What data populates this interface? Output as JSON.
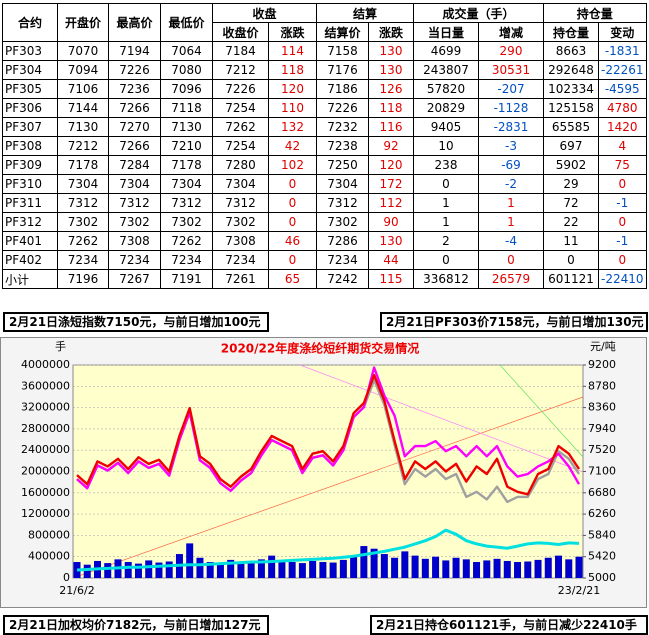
{
  "table": {
    "header_top": [
      "合约",
      "开盘价",
      "最高价",
      "最低价",
      "收盘",
      "结算",
      "成交量（手）",
      "持仓量"
    ],
    "header_sub": [
      "收盘价",
      "涨跌",
      "结算价",
      "涨跌",
      "当日量",
      "增减",
      "持仓量",
      "变动"
    ],
    "rows": [
      [
        "PF303",
        "7070",
        "7194",
        "7064",
        "7184",
        "114",
        "7158",
        "130",
        "4699",
        "290",
        "8663",
        "-1831"
      ],
      [
        "PF304",
        "7094",
        "7226",
        "7080",
        "7212",
        "118",
        "7176",
        "130",
        "243807",
        "30531",
        "292648",
        "-22261"
      ],
      [
        "PF305",
        "7106",
        "7236",
        "7096",
        "7226",
        "120",
        "7186",
        "126",
        "57820",
        "-207",
        "102334",
        "-4595"
      ],
      [
        "PF306",
        "7144",
        "7266",
        "7118",
        "7254",
        "110",
        "7226",
        "118",
        "20829",
        "-1128",
        "125158",
        "4780"
      ],
      [
        "PF307",
        "7130",
        "7270",
        "7130",
        "7262",
        "132",
        "7232",
        "116",
        "9405",
        "-2831",
        "65585",
        "1420"
      ],
      [
        "PF308",
        "7212",
        "7266",
        "7210",
        "7254",
        "42",
        "7238",
        "92",
        "10",
        "-3",
        "697",
        "4"
      ],
      [
        "PF309",
        "7178",
        "7284",
        "7178",
        "7280",
        "102",
        "7250",
        "120",
        "238",
        "-69",
        "5902",
        "75"
      ],
      [
        "PF310",
        "7304",
        "7304",
        "7304",
        "7304",
        "0",
        "7304",
        "172",
        "0",
        "-2",
        "29",
        "0"
      ],
      [
        "PF311",
        "7312",
        "7312",
        "7312",
        "7312",
        "0",
        "7312",
        "112",
        "1",
        "1",
        "72",
        "-1"
      ],
      [
        "PF312",
        "7302",
        "7302",
        "7302",
        "7302",
        "0",
        "7302",
        "90",
        "1",
        "1",
        "22",
        "0"
      ],
      [
        "PF401",
        "7262",
        "7308",
        "7262",
        "7308",
        "46",
        "7286",
        "130",
        "2",
        "-4",
        "11",
        "-1"
      ],
      [
        "PF402",
        "7234",
        "7234",
        "7234",
        "7234",
        "0",
        "7234",
        "44",
        "0",
        "0",
        "0",
        "0"
      ],
      [
        "小计",
        "7196",
        "7267",
        "7191",
        "7261",
        "65",
        "7242",
        "115",
        "336812",
        "26579",
        "601121",
        "-22410"
      ]
    ]
  },
  "notes": {
    "top_left": "2月21日涤短指数7150元，与前日增加100元",
    "top_right": "2月21日PF303价7158元，与前日增加130元",
    "bottom_left": "2月21日加权均价7182元，与前日增加127元",
    "bottom_right": "2月21日持仓601121手，与前日减少22410手"
  },
  "chart_data": {
    "type": "line",
    "title": "2020/22年度涤纶短纤期货交易情况",
    "y_label": "手",
    "y2_label": "元/吨",
    "categories": [
      "21/6/2",
      null,
      null,
      null,
      null,
      null,
      null,
      null,
      null,
      null,
      null,
      null,
      null,
      null,
      null,
      null,
      null,
      null,
      null,
      null,
      null,
      null,
      null,
      null,
      null,
      null,
      null,
      null,
      null,
      null,
      null,
      null,
      null,
      null,
      null,
      null,
      null,
      null,
      null,
      null,
      null,
      null,
      null,
      null,
      null,
      null,
      null,
      null,
      null,
      "23/2/21"
    ],
    "ylim": [
      0,
      4000000
    ],
    "yticks": [
      0,
      400000,
      800000,
      1200000,
      1600000,
      2000000,
      2400000,
      2800000,
      3200000,
      3600000,
      4000000
    ],
    "y2lim": [
      5000,
      9200
    ],
    "y2ticks": [
      5000,
      5420,
      5840,
      6260,
      6680,
      7100,
      7520,
      7940,
      8360,
      8780,
      9200
    ],
    "grid": true,
    "series": [
      {
        "type": "bar",
        "color": "#0000cc",
        "values": [
          300000,
          250000,
          320000,
          280000,
          350000,
          300000,
          270000,
          330000,
          290000,
          310000,
          450000,
          650000,
          380000,
          300000,
          260000,
          340000,
          290000,
          300000,
          350000,
          420000,
          330000,
          300000,
          280000,
          320000,
          300000,
          290000,
          340000,
          420000,
          600000,
          550000,
          450000,
          380000,
          500000,
          420000,
          360000,
          400000,
          330000,
          380000,
          350000,
          300000,
          330000,
          360000,
          320000,
          300000,
          310000,
          340000,
          380000,
          420000,
          350000,
          400000
        ]
      },
      {
        "type": "line",
        "color": "#00e0e0",
        "values": [
          150000,
          160000,
          170000,
          180000,
          190000,
          200000,
          200000,
          210000,
          220000,
          230000,
          240000,
          250000,
          250000,
          260000,
          270000,
          280000,
          290000,
          300000,
          300000,
          310000,
          320000,
          330000,
          340000,
          350000,
          360000,
          370000,
          390000,
          410000,
          440000,
          470000,
          500000,
          540000,
          580000,
          640000,
          700000,
          780000,
          900000,
          820000,
          700000,
          640000,
          600000,
          580000,
          560000,
          600000,
          640000,
          660000,
          650000,
          630000,
          660000,
          650000
        ]
      },
      {
        "type": "line",
        "axis": "y2",
        "color": "#a0a0a0",
        "values": [
          6950,
          6770,
          7220,
          7120,
          7270,
          7070,
          7300,
          7170,
          7250,
          7020,
          7720,
          8270,
          7320,
          7170,
          6870,
          6720,
          6920,
          7070,
          7420,
          7720,
          7620,
          7520,
          7070,
          7370,
          7420,
          7220,
          7520,
          8170,
          8370,
          8900,
          8420,
          7620,
          6850,
          7150,
          7000,
          7150,
          6950,
          7050,
          6600,
          6700,
          6550,
          6800,
          6500,
          6600,
          6600,
          6950,
          7050,
          7500,
          7350,
          7050
        ]
      },
      {
        "type": "line",
        "axis": "y2",
        "color": "#ff00ff",
        "values": [
          6950,
          6770,
          7220,
          7120,
          7270,
          7070,
          7300,
          7170,
          7250,
          7020,
          7720,
          8270,
          7320,
          7170,
          6870,
          6720,
          6920,
          7070,
          7420,
          7720,
          7620,
          7520,
          7070,
          7370,
          7420,
          7220,
          7520,
          8170,
          8370,
          9150,
          8600,
          8200,
          7400,
          7600,
          7600,
          7700,
          7500,
          7600,
          7400,
          7600,
          7400,
          7600,
          7200,
          7000,
          7050,
          7200,
          7300,
          7450,
          7200,
          6850
        ]
      },
      {
        "type": "line",
        "axis": "y2",
        "color": "#ee0000",
        "values": [
          7030,
          6850,
          7300,
          7200,
          7350,
          7150,
          7380,
          7250,
          7330,
          7100,
          7800,
          8350,
          7400,
          7250,
          6950,
          6800,
          7000,
          7150,
          7500,
          7800,
          7700,
          7600,
          7150,
          7450,
          7500,
          7300,
          7600,
          8250,
          8450,
          9000,
          8500,
          7700,
          6950,
          7300,
          7150,
          7300,
          7100,
          7250,
          6900,
          7200,
          7050,
          7350,
          6800,
          6700,
          6650,
          7050,
          7150,
          7600,
          7450,
          7150
        ]
      }
    ]
  }
}
